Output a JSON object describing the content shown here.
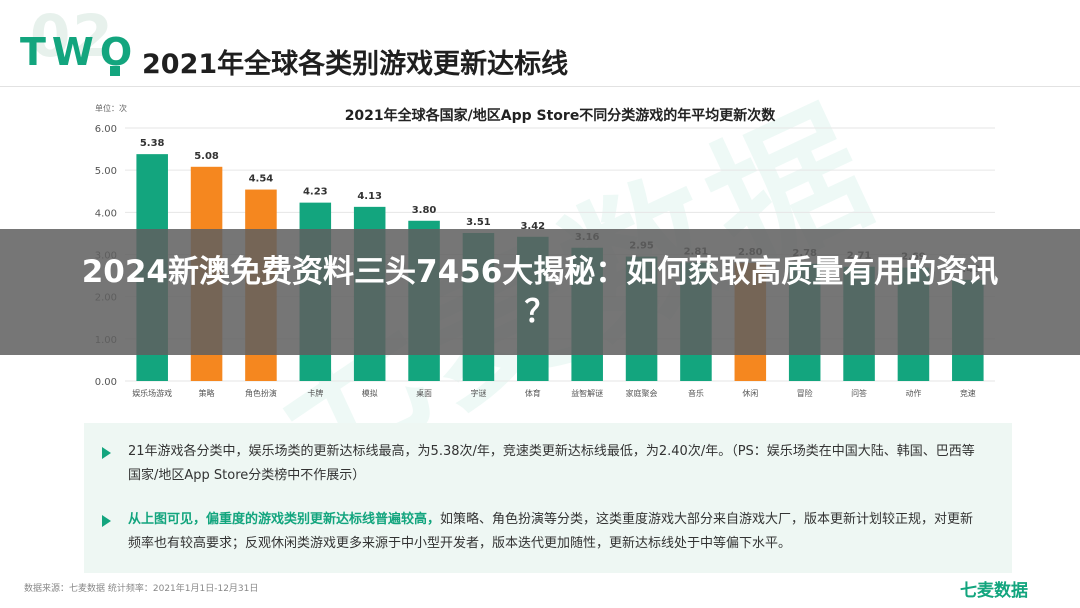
{
  "header": {
    "big_num": "02",
    "section_label": "TWO",
    "section_title": "2021年全球各类别游戏更新达标线"
  },
  "watermark": "七麦数据",
  "chart_data": {
    "type": "bar",
    "title": "2021年全球各国家/地区App Store不同分类游戏的年平均更新次数",
    "unit_label": "单位：次",
    "categories": [
      "娱乐场游戏",
      "策略",
      "角色扮演",
      "卡牌",
      "模拟",
      "桌面",
      "字谜",
      "体育",
      "益智解谜",
      "家庭聚会",
      "音乐",
      "休闲",
      "冒险",
      "问答",
      "动作",
      "竞速"
    ],
    "values": [
      5.38,
      5.08,
      4.54,
      4.23,
      4.13,
      3.8,
      3.51,
      3.42,
      3.16,
      2.95,
      2.81,
      2.8,
      2.78,
      2.71,
      2.69,
      2.4
    ],
    "value_labels": [
      "5.38",
      "5.08",
      "4.54",
      "4.23",
      "4.13",
      "3.80",
      "3.51",
      "3.42",
      "3.16",
      "2.95",
      "2.81",
      "2.80",
      "2.78",
      "2.71",
      "2.69",
      "2.40"
    ],
    "highlight": [
      false,
      true,
      true,
      false,
      false,
      false,
      false,
      false,
      false,
      false,
      false,
      true,
      false,
      false,
      false,
      false
    ],
    "colors": {
      "default": "#13a57e",
      "highlight": "#f5871f",
      "grid": "#e6e6e6",
      "axis_text": "#555555"
    },
    "yticks": [
      "0.00",
      "1.00",
      "2.00",
      "3.00",
      "4.00",
      "5.00",
      "6.00"
    ],
    "ylim": [
      0,
      6
    ],
    "grid": true,
    "legend": "none",
    "xlabel": "",
    "ylabel": ""
  },
  "banner": {
    "line1": "2024新澳免费资料三头7456大揭秘：如何获取高质量有用的资讯",
    "line2": "？"
  },
  "notes": {
    "note1": "21年游戏各分类中，娱乐场类的更新达标线最高，为5.38次/年，竞速类更新达标线最低，为2.40次/年。（PS：娱乐场类在中国大陆、韩国、巴西等国家/地区App Store分类榜中不作展示）",
    "note2_highlight": "从上图可见，偏重度的游戏类别更新达标线普遍较高，",
    "note2_rest": "如策略、角色扮演等分类，这类重度游戏大部分来自游戏大厂，版本更新计划较正规，对更新频率也有较高要求；反观休闲类游戏更多来源于中小型开发者，版本迭代更加随性，更新达标线处于中等偏下水平。"
  },
  "footer": {
    "source": "数据来源：七麦数据  统计频率：2021年1月1日-12月31日",
    "brand": "七麦数据"
  }
}
